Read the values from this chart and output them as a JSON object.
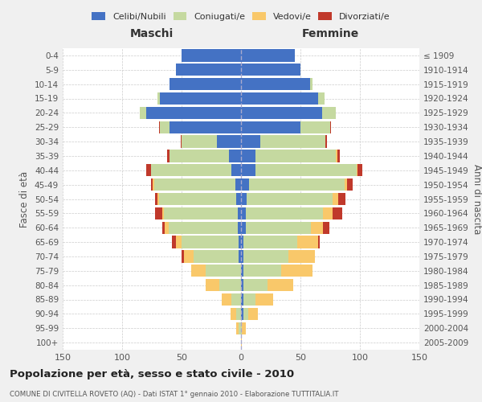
{
  "age_groups": [
    "0-4",
    "5-9",
    "10-14",
    "15-19",
    "20-24",
    "25-29",
    "30-34",
    "35-39",
    "40-44",
    "45-49",
    "50-54",
    "55-59",
    "60-64",
    "65-69",
    "70-74",
    "75-79",
    "80-84",
    "85-89",
    "90-94",
    "95-99",
    "100+"
  ],
  "birth_years": [
    "2005-2009",
    "2000-2004",
    "1995-1999",
    "1990-1994",
    "1985-1989",
    "1980-1984",
    "1975-1979",
    "1970-1974",
    "1965-1969",
    "1960-1964",
    "1955-1959",
    "1950-1954",
    "1945-1949",
    "1940-1944",
    "1935-1939",
    "1930-1934",
    "1925-1929",
    "1920-1924",
    "1915-1919",
    "1910-1914",
    "≤ 1909"
  ],
  "male_celibe": [
    50,
    55,
    60,
    68,
    80,
    60,
    20,
    10,
    8,
    5,
    4,
    3,
    3,
    2,
    2,
    0,
    0,
    0,
    0,
    0,
    0
  ],
  "male_coniugato": [
    0,
    0,
    0,
    2,
    5,
    8,
    30,
    50,
    68,
    68,
    65,
    62,
    58,
    48,
    38,
    30,
    18,
    8,
    4,
    2,
    0
  ],
  "male_vedovo": [
    0,
    0,
    0,
    0,
    0,
    0,
    0,
    0,
    0,
    1,
    1,
    1,
    3,
    5,
    8,
    12,
    12,
    8,
    5,
    2,
    0
  ],
  "male_divorziato": [
    0,
    0,
    0,
    0,
    0,
    1,
    1,
    2,
    4,
    2,
    2,
    6,
    2,
    3,
    2,
    0,
    0,
    0,
    0,
    0,
    0
  ],
  "female_celibe": [
    45,
    50,
    58,
    65,
    68,
    50,
    16,
    12,
    12,
    7,
    5,
    4,
    4,
    2,
    2,
    2,
    2,
    2,
    2,
    0,
    0
  ],
  "female_coniugata": [
    0,
    0,
    2,
    5,
    12,
    25,
    55,
    68,
    85,
    80,
    72,
    65,
    55,
    45,
    38,
    32,
    20,
    10,
    4,
    1,
    0
  ],
  "female_vedova": [
    0,
    0,
    0,
    0,
    0,
    0,
    0,
    1,
    1,
    2,
    5,
    8,
    10,
    18,
    22,
    26,
    22,
    15,
    8,
    3,
    1
  ],
  "female_divorziata": [
    0,
    0,
    0,
    0,
    0,
    1,
    1,
    2,
    4,
    5,
    6,
    8,
    5,
    1,
    0,
    0,
    0,
    0,
    0,
    0,
    0
  ],
  "color_celibe": "#4472c4",
  "color_coniugato": "#c5d9a0",
  "color_vedovo": "#f9c86a",
  "color_divorziato": "#c0392b",
  "xlim": 150,
  "title": "Popolazione per età, sesso e stato civile - 2010",
  "subtitle": "COMUNE DI CIVITELLA ROVETO (AQ) - Dati ISTAT 1° gennaio 2010 - Elaborazione TUTTITALIA.IT",
  "ylabel_left": "Fasce di età",
  "ylabel_right": "Anni di nascita",
  "xlabel_male": "Maschi",
  "xlabel_female": "Femmine",
  "bg_color": "#f0f0f0",
  "plot_bg": "#ffffff"
}
